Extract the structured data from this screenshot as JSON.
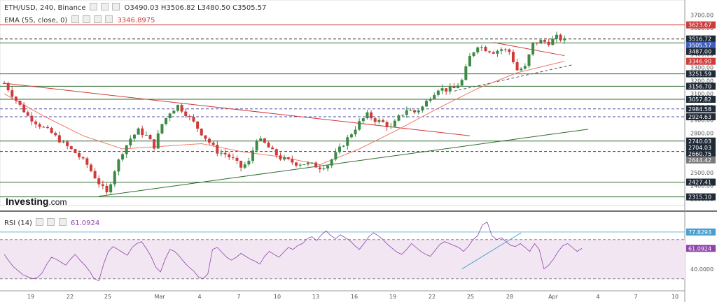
{
  "header": {
    "symbol": "ETH/USD, 240, Binance",
    "open": "O3490.03",
    "high": "H3506.82",
    "low": "L3480.50",
    "close": "C3505.57",
    "ema_label": "EMA (55, close, 0)",
    "ema_value": "3346.8975",
    "rsi_label": "RSI (14)",
    "rsi_value": "61.0924"
  },
  "logo": {
    "main": "Investing",
    "suffix": ".com"
  },
  "colors": {
    "up": "#3c8a45",
    "down": "#cf3b3b",
    "ema": "#f07a6a",
    "support": "#2e6b2e",
    "dashed": "#4b4ba8",
    "rsi": "#8e44ad",
    "rsi_fill": "#f3e6f3",
    "price_label": "#1f2a37"
  },
  "chart_data": [
    {
      "type": "candlestick",
      "x_ticks": [
        "19",
        "22",
        "25",
        "Mar",
        "4",
        "7",
        "10",
        "13",
        "16",
        "19",
        "22",
        "25",
        "28",
        "Apr",
        "4",
        "7",
        "10"
      ],
      "y_ticks": [
        2300,
        2400,
        2500,
        2600,
        2700,
        2800,
        2900,
        3000,
        3100,
        3200,
        3300,
        3400,
        3500,
        3600,
        3700
      ],
      "ylim": [
        2260,
        3760
      ],
      "price_labels": [
        {
          "value": "3623.67",
          "price": 3623.67,
          "color": "#cf3b3b"
        },
        {
          "value": "3516.72",
          "price": 3516.72,
          "color": "#1f2a37"
        },
        {
          "value": "3505.57",
          "price": 3505.57,
          "color": "#3e5dbf"
        },
        {
          "value": "3487.00",
          "price": 3487.0,
          "color": "#1f2a37"
        },
        {
          "value": "3346.90",
          "price": 3346.9,
          "color": "#cf3b3b"
        },
        {
          "value": "3251.59",
          "price": 3251.59,
          "color": "#1f2a37"
        },
        {
          "value": "3156.70",
          "price": 3156.7,
          "color": "#1f2a37"
        },
        {
          "value": "3057.82",
          "price": 3057.82,
          "color": "#1f2a37"
        },
        {
          "value": "2984.58",
          "price": 2984.58,
          "color": "#1f2a37"
        },
        {
          "value": "2924.63",
          "price": 2924.63,
          "color": "#1f2a37"
        },
        {
          "value": "2740.03",
          "price": 2740.03,
          "color": "#1f2a37"
        },
        {
          "value": "2704.03",
          "price": 2704.03,
          "color": "#1f2a37"
        },
        {
          "value": "2660.75",
          "price": 2660.75,
          "color": "#1f2a37"
        },
        {
          "value": "2644.42",
          "price": 2644.42,
          "color": "#7a7a7a"
        },
        {
          "value": "2427.41",
          "price": 2427.41,
          "color": "#1f2a37"
        },
        {
          "value": "2315.10",
          "price": 2315.1,
          "color": "#1f2a37"
        }
      ],
      "close_path": [
        [
          0,
          3180
        ],
        [
          3,
          3050
        ],
        [
          6,
          2930
        ],
        [
          9,
          2860
        ],
        [
          12,
          2800
        ],
        [
          15,
          2720
        ],
        [
          18,
          2650
        ],
        [
          21,
          2560
        ],
        [
          24,
          2420
        ],
        [
          26,
          2340
        ],
        [
          28,
          2520
        ],
        [
          30,
          2660
        ],
        [
          32,
          2760
        ],
        [
          34,
          2820
        ],
        [
          36,
          2780
        ],
        [
          38,
          2700
        ],
        [
          40,
          2870
        ],
        [
          42,
          2960
        ],
        [
          44,
          3010
        ],
        [
          46,
          2950
        ],
        [
          48,
          2880
        ],
        [
          50,
          2800
        ],
        [
          52,
          2730
        ],
        [
          54,
          2660
        ],
        [
          56,
          2640
        ],
        [
          58,
          2600
        ],
        [
          60,
          2540
        ],
        [
          62,
          2580
        ],
        [
          64,
          2760
        ],
        [
          66,
          2720
        ],
        [
          68,
          2660
        ],
        [
          70,
          2610
        ],
        [
          72,
          2590
        ],
        [
          74,
          2570
        ],
        [
          76,
          2570
        ],
        [
          78,
          2560
        ],
        [
          80,
          2540
        ],
        [
          82,
          2560
        ],
        [
          84,
          2640
        ],
        [
          86,
          2720
        ],
        [
          88,
          2800
        ],
        [
          90,
          2880
        ],
        [
          92,
          2940
        ],
        [
          94,
          2900
        ],
        [
          96,
          2880
        ],
        [
          98,
          2840
        ],
        [
          100,
          2920
        ],
        [
          102,
          2980
        ],
        [
          104,
          2960
        ],
        [
          106,
          3000
        ],
        [
          108,
          3080
        ],
        [
          110,
          3140
        ],
        [
          112,
          3130
        ],
        [
          114,
          3140
        ],
        [
          116,
          3200
        ],
        [
          118,
          3380
        ],
        [
          120,
          3470
        ],
        [
          122,
          3440
        ],
        [
          124,
          3420
        ],
        [
          126,
          3440
        ],
        [
          128,
          3420
        ],
        [
          130,
          3280
        ],
        [
          132,
          3300
        ],
        [
          134,
          3480
        ],
        [
          136,
          3500
        ],
        [
          138,
          3490
        ],
        [
          140,
          3530
        ],
        [
          142,
          3505
        ]
      ],
      "ema_path": [
        [
          0,
          3100
        ],
        [
          10,
          2930
        ],
        [
          20,
          2780
        ],
        [
          30,
          2680
        ],
        [
          40,
          2700
        ],
        [
          50,
          2720
        ],
        [
          60,
          2660
        ],
        [
          70,
          2620
        ],
        [
          80,
          2560
        ],
        [
          90,
          2680
        ],
        [
          100,
          2830
        ],
        [
          110,
          2990
        ],
        [
          120,
          3140
        ],
        [
          130,
          3260
        ],
        [
          142,
          3347
        ]
      ],
      "trendlines": [
        {
          "from": [
            0,
            3180
          ],
          "to": [
            118,
            2780
          ],
          "color": "#cf3b3b",
          "style": "solid"
        },
        {
          "from": [
            24,
            2320
          ],
          "to": [
            148,
            2830
          ],
          "color": "#2e6b2e",
          "style": "solid"
        },
        {
          "from": [
            124,
            3490
          ],
          "to": [
            142,
            3390
          ],
          "color": "#cf3b3b",
          "style": "solid"
        },
        {
          "from": [
            114,
            3120
          ],
          "to": [
            144,
            3320
          ],
          "color": "#555555",
          "style": "dashed"
        }
      ],
      "horizontal_levels": [
        {
          "price": 3623.67,
          "color": "#cf3b3b",
          "style": "solid"
        },
        {
          "price": 3516.72,
          "color": "#333333",
          "style": "dashed"
        },
        {
          "price": 3487.0,
          "color": "#2e6b2e",
          "style": "solid"
        },
        {
          "price": 3251.59,
          "color": "#2e6b2e",
          "style": "solid"
        },
        {
          "price": 3156.7,
          "color": "#2e6b2e",
          "style": "solid"
        },
        {
          "price": 3057.82,
          "color": "#2e6b2e",
          "style": "solid"
        },
        {
          "price": 2984.58,
          "color": "#4b4ba8",
          "style": "dashed"
        },
        {
          "price": 2924.63,
          "color": "#4b4ba8",
          "style": "dashed"
        },
        {
          "price": 2740.03,
          "color": "#2e6b2e",
          "style": "solid"
        },
        {
          "price": 2660.75,
          "color": "#333333",
          "style": "dashed"
        },
        {
          "price": 2427.41,
          "color": "#2e6b2e",
          "style": "solid"
        },
        {
          "price": 2315.1,
          "color": "#2e6b2e",
          "style": "solid"
        }
      ]
    },
    {
      "type": "line",
      "y_ticks": [
        "40.0000"
      ],
      "y_tick_values": [
        40
      ],
      "ylim": [
        22,
        92
      ],
      "levels": [
        {
          "value": "77.8293",
          "y": 77.83
        },
        {
          "value": "61.0924",
          "y": 61.09
        }
      ],
      "band": [
        30,
        70
      ],
      "series": [
        {
          "values": [
            55,
            48,
            42,
            38,
            34,
            32,
            30,
            31,
            36,
            45,
            52,
            50,
            47,
            44,
            50,
            55,
            49,
            44,
            38,
            30,
            28,
            45,
            58,
            63,
            60,
            57,
            54,
            62,
            66,
            68,
            61,
            53,
            42,
            37,
            50,
            60,
            58,
            53,
            47,
            42,
            38,
            32,
            30,
            35,
            60,
            62,
            57,
            52,
            49,
            52,
            56,
            53,
            50,
            48,
            45,
            53,
            58,
            55,
            52,
            57,
            62,
            60,
            64,
            66,
            71,
            73,
            69,
            75,
            79,
            74,
            71,
            75,
            72,
            69,
            64,
            60,
            66,
            73,
            77,
            74,
            70,
            65,
            61,
            57,
            55,
            60,
            66,
            62,
            58,
            55,
            53,
            59,
            65,
            68,
            66,
            64,
            62,
            58,
            63,
            70,
            74,
            85,
            88,
            74,
            70,
            72,
            68,
            64,
            63,
            66,
            62,
            58,
            66,
            60,
            40,
            44,
            50,
            58,
            64,
            66,
            62,
            58,
            61
          ]
        }
      ],
      "divergence_line": {
        "from": [
          116,
          40
        ],
        "to": [
          131,
          77
        ]
      }
    }
  ]
}
